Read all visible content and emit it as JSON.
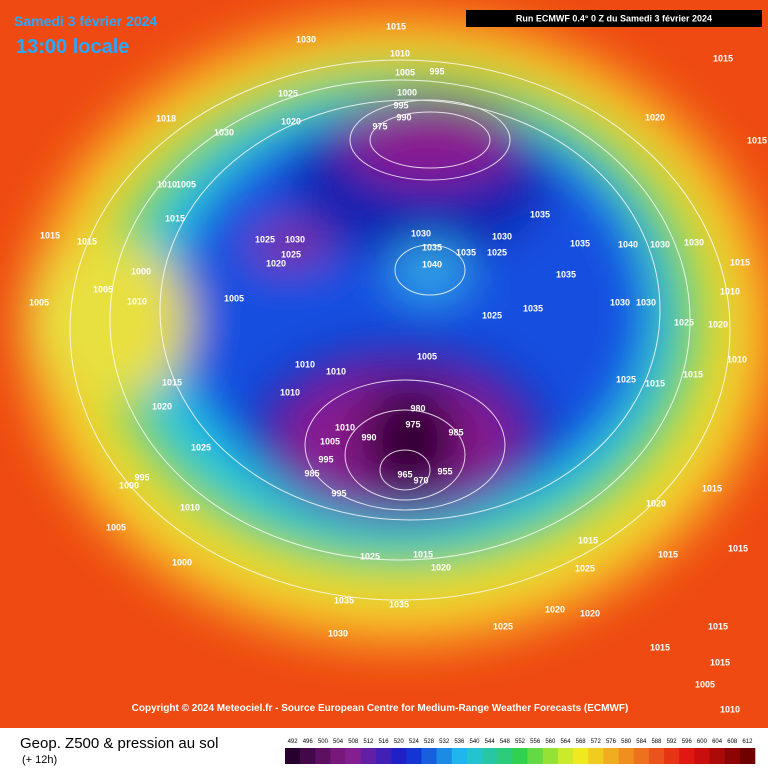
{
  "header": {
    "date": "Samedi 3 février 2024",
    "time": "13:00 locale",
    "run": "Run ECMWF 0.4° 0 Z du Samedi 3 février 2024"
  },
  "isobar_labels": [
    1015,
    1030,
    1010,
    1005,
    995,
    1015,
    1025,
    1000,
    995,
    990,
    975,
    1018,
    1030,
    1020,
    1020,
    1015,
    1010,
    1005,
    1015,
    1015,
    1015,
    1025,
    1030,
    1020,
    1025,
    1030,
    1035,
    1040,
    1035,
    1030,
    1025,
    1035,
    1035,
    1040,
    1030,
    1030,
    1015,
    1000,
    1005,
    1010,
    1005,
    1005,
    1035,
    1025,
    1035,
    1030,
    1030,
    1025,
    1020,
    1010,
    1005,
    1010,
    1010,
    1010,
    1015,
    1020,
    1010,
    1015,
    1025,
    1015,
    980,
    975,
    985,
    1010,
    990,
    1005,
    995,
    1025,
    985,
    995,
    965,
    955,
    970,
    1000,
    995,
    1010,
    1020,
    1015,
    1005,
    1015,
    1015,
    1015,
    1000,
    1025,
    1015,
    1020,
    1025,
    1035,
    1035,
    1020,
    1020,
    1030,
    1025,
    1015,
    1015,
    1015,
    1005,
    1010
  ],
  "copyright": "Copyright © 2024 Meteociel.fr - Source European Centre for Medium-Range Weather Forecasts (ECMWF)",
  "footer": {
    "title": "Geop. Z500 & pression au sol",
    "subtitle": "(+ 12h)"
  },
  "colorbar": {
    "ticks": [
      492,
      496,
      500,
      504,
      508,
      512,
      516,
      520,
      524,
      528,
      532,
      536,
      540,
      544,
      548,
      552,
      556,
      560,
      564,
      568,
      572,
      576,
      580,
      584,
      588,
      592,
      596,
      600,
      604,
      608,
      612
    ]
  }
}
